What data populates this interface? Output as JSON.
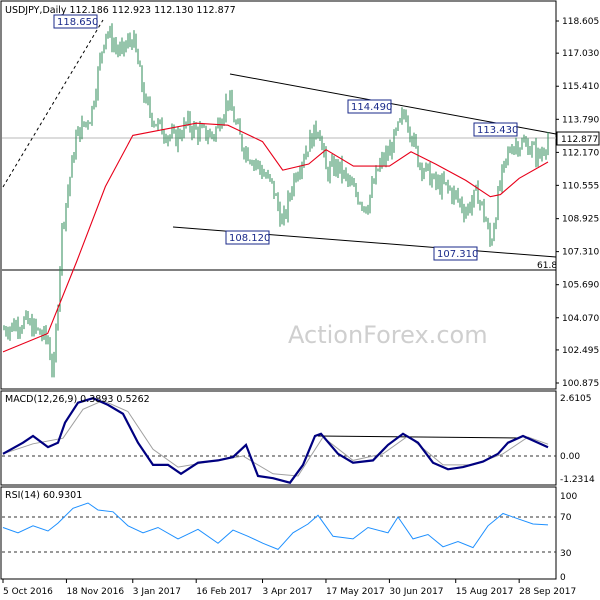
{
  "chart_data": [
    {
      "type": "candlestick",
      "title": "USDJPY,Daily  112.186 112.923 112.130 112.877",
      "price_marker": "112.877",
      "watermark": "ActionForex.com",
      "ylim": [
        100.7,
        119.6
      ],
      "y_ticks": [
        "118.605",
        "117.030",
        "115.410",
        "113.790",
        "112.170",
        "110.555",
        "108.925",
        "107.310",
        "105.690",
        "104.070",
        "102.495",
        "100.875"
      ],
      "x_ticks": [
        "5 Oct 2016",
        "18 Nov 2016",
        "3 Jan 2017",
        "16 Feb 2017",
        "3 Apr 2017",
        "17 May 2017",
        "30 Jun 2017",
        "15 Aug 2017",
        "28 Sep 2017"
      ],
      "annotations": [
        {
          "label": "118.650",
          "value": 118.65
        },
        {
          "label": "114.490",
          "value": 114.49
        },
        {
          "label": "113.430",
          "value": 113.43
        },
        {
          "label": "108.120",
          "value": 108.12
        },
        {
          "label": "107.310",
          "value": 107.31
        },
        {
          "label": "61.8",
          "value": 106.6
        }
      ],
      "close_path": [
        [
          "5 Oct 2016",
          103.5
        ],
        [
          "20 Oct 2016",
          103.9
        ],
        [
          "5 Nov 2016",
          103.0
        ],
        [
          "9 Nov 2016",
          101.2
        ],
        [
          "15 Nov 2016",
          108.5
        ],
        [
          "25 Nov 2016",
          113.0
        ],
        [
          "5 Dec 2016",
          114.0
        ],
        [
          "15 Dec 2016",
          118.2
        ],
        [
          "25 Dec 2016",
          117.0
        ],
        [
          "3 Jan 2017",
          117.8
        ],
        [
          "12 Jan 2017",
          114.5
        ],
        [
          "20 Jan 2017",
          113.5
        ],
        [
          "1 Feb 2017",
          112.8
        ],
        [
          "10 Feb 2017",
          113.6
        ],
        [
          "16 Feb 2017",
          113.2
        ],
        [
          "28 Feb 2017",
          113.0
        ],
        [
          "10 Mar 2017",
          114.8
        ],
        [
          "20 Mar 2017",
          112.5
        ],
        [
          "31 Mar 2017",
          111.5
        ],
        [
          "10 Apr 2017",
          110.5
        ],
        [
          "17 Apr 2017",
          108.6
        ],
        [
          "25 Apr 2017",
          111.0
        ],
        [
          "5 May 2017",
          112.6
        ],
        [
          "12 May 2017",
          113.5
        ],
        [
          "17 May 2017",
          111.2
        ],
        [
          "25 May 2017",
          111.5
        ],
        [
          "5 Jun 2017",
          110.3
        ],
        [
          "14 Jun 2017",
          109.5
        ],
        [
          "23 Jun 2017",
          111.5
        ],
        [
          "30 Jun 2017",
          112.2
        ],
        [
          "11 Jul 2017",
          114.2
        ],
        [
          "20 Jul 2017",
          111.8
        ],
        [
          "1 Aug 2017",
          110.6
        ],
        [
          "8 Aug 2017",
          110.5
        ],
        [
          "15 Aug 2017",
          110.0
        ],
        [
          "22 Aug 2017",
          109.3
        ],
        [
          "30 Aug 2017",
          110.2
        ],
        [
          "5 Sep 2017",
          108.8
        ],
        [
          "8 Sep 2017",
          107.6
        ],
        [
          "15 Sep 2017",
          110.7
        ],
        [
          "22 Sep 2017",
          112.5
        ],
        [
          "28 Sep 2017",
          112.6
        ],
        [
          "5 Oct 2017",
          112.5
        ],
        [
          "12 Oct 2017",
          111.9
        ],
        [
          "18 Oct 2017",
          112.9
        ]
      ],
      "sma_path": [
        [
          "5 Oct 2016",
          102.4
        ],
        [
          "5 Nov 2016",
          103.3
        ],
        [
          "25 Nov 2016",
          106.8
        ],
        [
          "15 Dec 2016",
          110.5
        ],
        [
          "3 Jan 2017",
          113.0
        ],
        [
          "16 Feb 2017",
          113.6
        ],
        [
          "10 Mar 2017",
          113.5
        ],
        [
          "3 Apr 2017",
          112.7
        ],
        [
          "17 Apr 2017",
          111.3
        ],
        [
          "5 May 2017",
          111.6
        ],
        [
          "17 May 2017",
          112.3
        ],
        [
          "5 Jun 2017",
          111.5
        ],
        [
          "30 Jun 2017",
          111.5
        ],
        [
          "15 Jul 2017",
          112.2
        ],
        [
          "1 Aug 2017",
          111.6
        ],
        [
          "22 Aug 2017",
          110.8
        ],
        [
          "8 Sep 2017",
          110.0
        ],
        [
          "15 Sep 2017",
          110.1
        ],
        [
          "28 Sep 2017",
          110.9
        ],
        [
          "18 Oct 2017",
          111.7
        ]
      ]
    },
    {
      "type": "line",
      "title": "MACD(12,26,9) 0.3893 0.5262",
      "y_ticks": [
        "2.6105",
        "0.00",
        "-1.2314"
      ],
      "series": [
        {
          "name": "MACD",
          "values": [
            [
              0,
              0.1
            ],
            [
              20,
              0.6
            ],
            [
              30,
              0.9
            ],
            [
              45,
              0.4
            ],
            [
              55,
              0.6
            ],
            [
              62,
              1.5
            ],
            [
              75,
              2.4
            ],
            [
              90,
              2.6
            ],
            [
              105,
              2.3
            ],
            [
              120,
              1.9
            ],
            [
              135,
              0.6
            ],
            [
              150,
              -0.4
            ],
            [
              165,
              -0.4
            ],
            [
              178,
              -0.8
            ],
            [
              195,
              -0.3
            ],
            [
              215,
              -0.2
            ],
            [
              230,
              -0.05
            ],
            [
              243,
              0.5
            ],
            [
              255,
              -0.9
            ],
            [
              270,
              -1.0
            ],
            [
              287,
              -1.2
            ],
            [
              300,
              -0.4
            ],
            [
              312,
              0.9
            ],
            [
              318,
              1.0
            ],
            [
              335,
              0.1
            ],
            [
              350,
              -0.3
            ],
            [
              370,
              -0.2
            ],
            [
              385,
              0.5
            ],
            [
              400,
              1.0
            ],
            [
              415,
              0.6
            ],
            [
              430,
              -0.3
            ],
            [
              445,
              -0.6
            ],
            [
              460,
              -0.5
            ],
            [
              480,
              -0.25
            ],
            [
              495,
              0.1
            ],
            [
              505,
              0.6
            ],
            [
              520,
              0.9
            ],
            [
              535,
              0.6
            ],
            [
              545,
              0.39
            ]
          ]
        },
        {
          "name": "Signal",
          "values": [
            [
              0,
              0.1
            ],
            [
              30,
              0.55
            ],
            [
              60,
              0.8
            ],
            [
              80,
              2.1
            ],
            [
              100,
              2.5
            ],
            [
              125,
              2.0
            ],
            [
              150,
              0.3
            ],
            [
              175,
              -0.5
            ],
            [
              215,
              -0.2
            ],
            [
              240,
              0.0
            ],
            [
              270,
              -0.8
            ],
            [
              295,
              -0.9
            ],
            [
              320,
              0.85
            ],
            [
              350,
              -0.2
            ],
            [
              380,
              0.1
            ],
            [
              405,
              0.9
            ],
            [
              440,
              -0.4
            ],
            [
              470,
              -0.4
            ],
            [
              500,
              0.1
            ],
            [
              525,
              0.85
            ],
            [
              545,
              0.53
            ]
          ]
        }
      ],
      "level_line_label": "0.00"
    },
    {
      "type": "line",
      "title": "RSI(14) 60.9301",
      "y_ticks": [
        "100",
        "70",
        "30",
        "0"
      ],
      "ylim": [
        0,
        100
      ],
      "series": [
        {
          "name": "RSI",
          "values": [
            [
              0,
              58
            ],
            [
              15,
              52
            ],
            [
              30,
              60
            ],
            [
              45,
              54
            ],
            [
              55,
              63
            ],
            [
              70,
              80
            ],
            [
              85,
              86
            ],
            [
              95,
              78
            ],
            [
              110,
              76
            ],
            [
              125,
              60
            ],
            [
              140,
              52
            ],
            [
              155,
              58
            ],
            [
              175,
              45
            ],
            [
              195,
              56
            ],
            [
              215,
              40
            ],
            [
              230,
              55
            ],
            [
              245,
              48
            ],
            [
              260,
              40
            ],
            [
              275,
              33
            ],
            [
              290,
              52
            ],
            [
              305,
              62
            ],
            [
              315,
              72
            ],
            [
              330,
              48
            ],
            [
              350,
              45
            ],
            [
              365,
              58
            ],
            [
              385,
              52
            ],
            [
              395,
              70
            ],
            [
              410,
              45
            ],
            [
              425,
              50
            ],
            [
              440,
              36
            ],
            [
              455,
              42
            ],
            [
              470,
              35
            ],
            [
              485,
              60
            ],
            [
              500,
              74
            ],
            [
              515,
              68
            ],
            [
              530,
              62
            ],
            [
              545,
              61
            ]
          ]
        }
      ]
    }
  ]
}
